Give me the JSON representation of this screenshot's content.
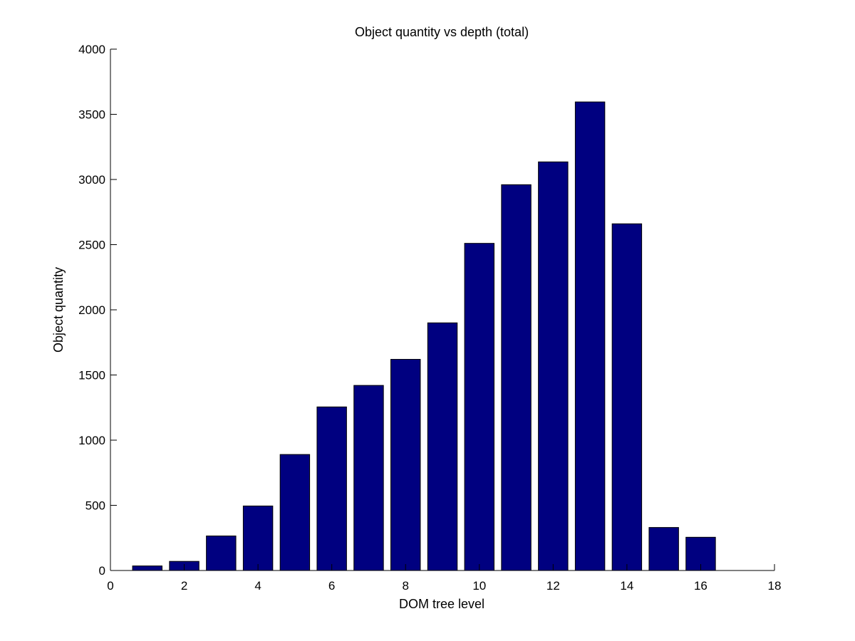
{
  "chart_data": {
    "type": "bar",
    "title": "Object quantity vs depth (total)",
    "xlabel": "DOM tree level",
    "ylabel": "Object quantity",
    "x": [
      1,
      2,
      3,
      4,
      5,
      6,
      7,
      8,
      9,
      10,
      11,
      12,
      13,
      14,
      15,
      16
    ],
    "values": [
      35,
      70,
      265,
      495,
      890,
      1255,
      1420,
      1620,
      1900,
      2510,
      2960,
      3135,
      3595,
      2660,
      330,
      255
    ],
    "xlim": [
      0,
      18
    ],
    "ylim": [
      0,
      4000
    ],
    "xticks": [
      0,
      2,
      4,
      6,
      8,
      10,
      12,
      14,
      16,
      18
    ],
    "yticks": [
      0,
      500,
      1000,
      1500,
      2000,
      2500,
      3000,
      3500,
      4000
    ],
    "grid": false,
    "colors": {
      "bar_fill": "#000080",
      "bar_edge": "#000000",
      "axis": "#000000"
    }
  }
}
